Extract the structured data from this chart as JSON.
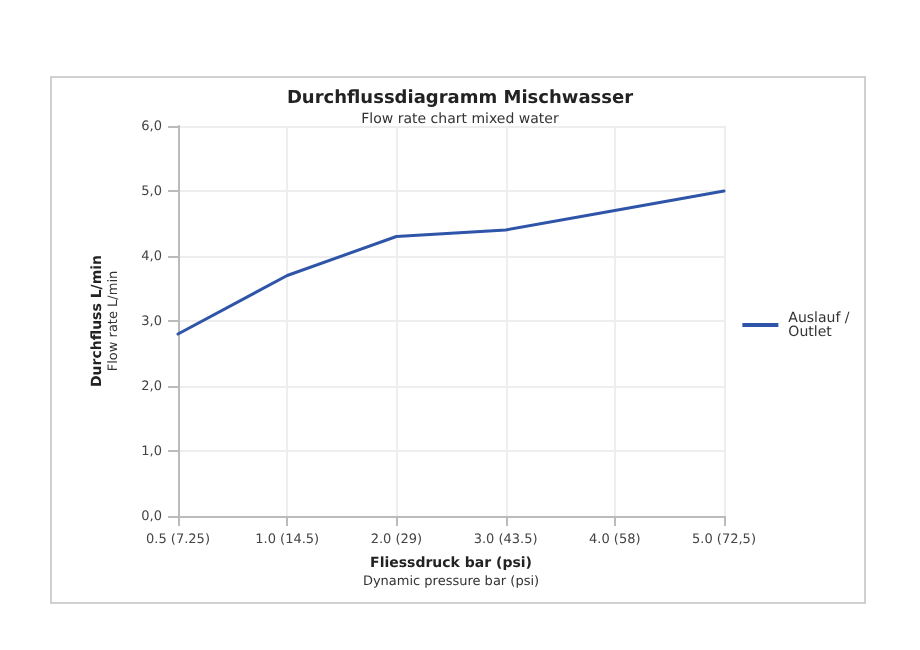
{
  "chart_data": {
    "type": "line",
    "title": "Durchflussdiagramm Mischwasser",
    "subtitle": "Flow rate chart mixed water",
    "xlabel": "Fliessdruck bar (psi)\nDynamic pressure bar (psi)",
    "ylabel": "Durchfluss L/min\nFlow rate L/min",
    "categories": [
      "0.5 (7.25)",
      "1.0 (14.5)",
      "2.0 (29)",
      "3.0 (43.5)",
      "4.0 (58)",
      "5.0 (72,5)"
    ],
    "series": [
      {
        "name": "Auslauf / Outlet",
        "color": "#2f55a8",
        "values": [
          2.8,
          3.7,
          4.3,
          4.4,
          4.7,
          5.0
        ]
      }
    ],
    "ylim": [
      0,
      6
    ],
    "yticks": [
      {
        "value": 0,
        "label": "0,0"
      },
      {
        "value": 1,
        "label": "1,0"
      },
      {
        "value": 2,
        "label": "2,0"
      },
      {
        "value": 3,
        "label": "3,0"
      },
      {
        "value": 4,
        "label": "4,0"
      },
      {
        "value": 5,
        "label": "5,0"
      },
      {
        "value": 6,
        "label": "6,0"
      }
    ],
    "grid": true,
    "legend": "right",
    "marker": "none",
    "line_style": "solid"
  }
}
